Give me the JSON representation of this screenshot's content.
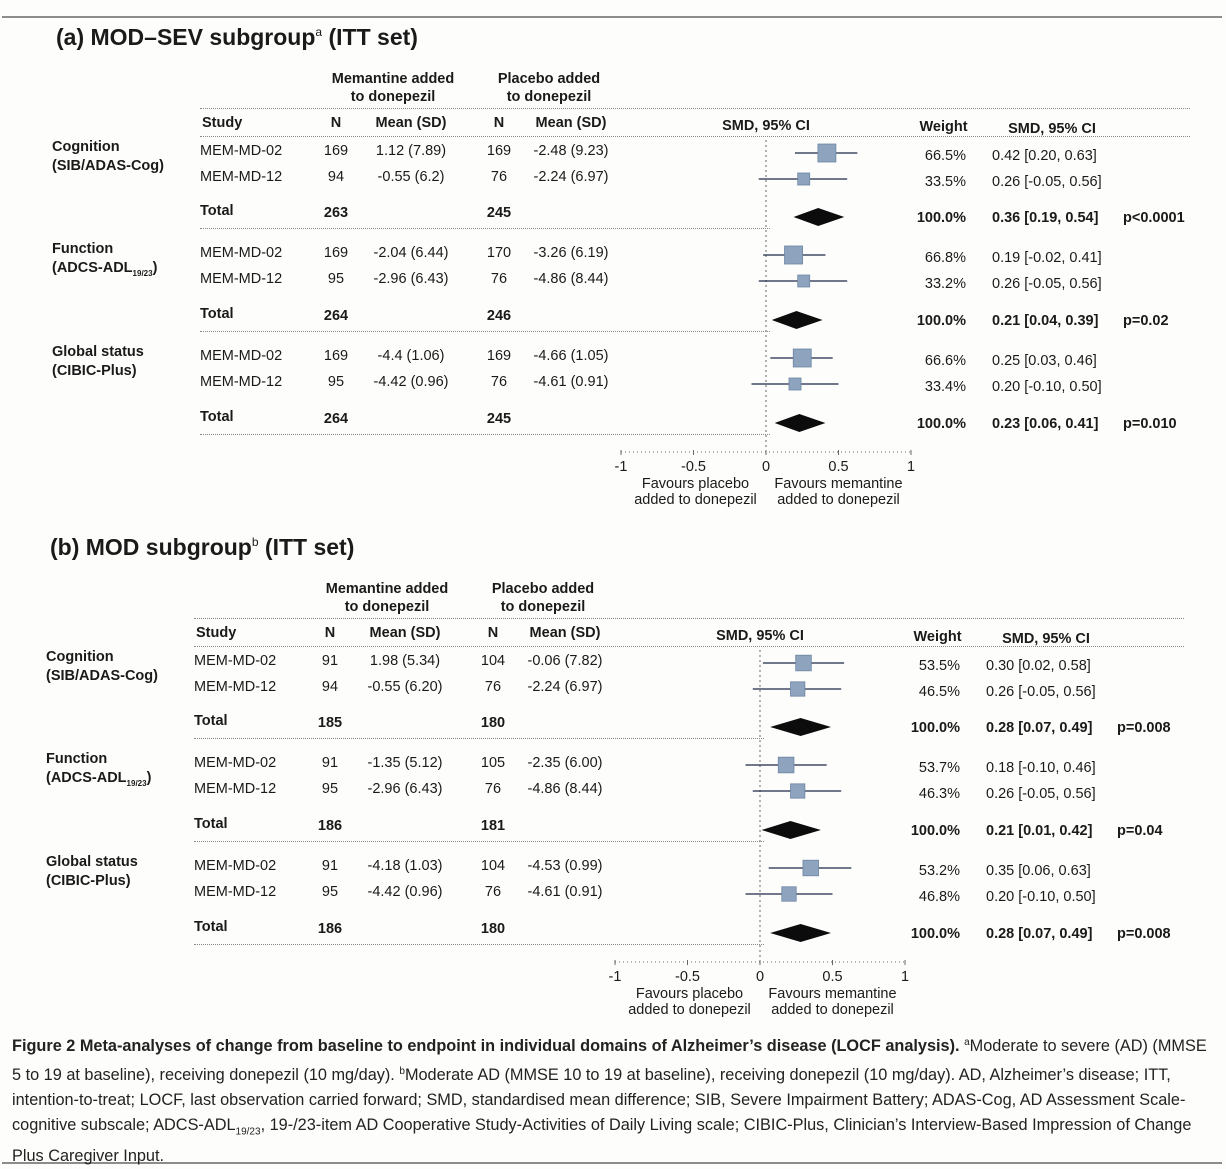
{
  "panels": [
    {
      "id": "a",
      "title_prefix": "(a) MOD–SEV subgroup",
      "title_sup": "a",
      "title_suffix": " (ITT set)",
      "hdr_memantine": [
        "Memantine added",
        "to donepezil"
      ],
      "hdr_placebo": [
        "Placebo added",
        "to donepezil"
      ],
      "col_study": "Study",
      "col_n": "N",
      "col_mean": "Mean (SD)",
      "col_plot": "SMD, 95% CI",
      "col_weight": "Weight",
      "col_smd": "SMD, 95% CI",
      "groups": [
        {
          "domain_line1": "Cognition",
          "domain_line2": "(SIB/ADAS-Cog)",
          "domain_sub": "",
          "rows": [
            {
              "study": "MEM-MD-02",
              "n1": "169",
              "mean1": "1.12 (7.89)",
              "n2": "169",
              "mean2": "-2.48 (9.23)",
              "weight": "66.5%",
              "smd": "0.42 [0.20, 0.63]",
              "est": 0.42,
              "lo": 0.2,
              "hi": 0.63,
              "w": 66.5
            },
            {
              "study": "MEM-MD-12",
              "n1": "94",
              "mean1": "-0.55 (6.2)",
              "n2": "76",
              "mean2": "-2.24 (6.97)",
              "weight": "33.5%",
              "smd": "0.26 [-0.05, 0.56]",
              "est": 0.26,
              "lo": -0.05,
              "hi": 0.56,
              "w": 33.5
            }
          ],
          "total": {
            "label": "Total",
            "n1": "263",
            "n2": "245",
            "weight": "100.0%",
            "smd": "0.36 [0.19, 0.54]",
            "p": "p<0.0001",
            "est": 0.36,
            "lo": 0.19,
            "hi": 0.54
          }
        },
        {
          "domain_line1": "Function",
          "domain_line2": "(ADCS-ADL",
          "domain_sub": "19/23",
          "rows": [
            {
              "study": "MEM-MD-02",
              "n1": "169",
              "mean1": "-2.04 (6.44)",
              "n2": "170",
              "mean2": "-3.26 (6.19)",
              "weight": "66.8%",
              "smd": "0.19 [-0.02, 0.41]",
              "est": 0.19,
              "lo": -0.02,
              "hi": 0.41,
              "w": 66.8
            },
            {
              "study": "MEM-MD-12",
              "n1": "95",
              "mean1": "-2.96 (6.43)",
              "n2": "76",
              "mean2": "-4.86 (8.44)",
              "weight": "33.2%",
              "smd": "0.26 [-0.05, 0.56]",
              "est": 0.26,
              "lo": -0.05,
              "hi": 0.56,
              "w": 33.2
            }
          ],
          "total": {
            "label": "Total",
            "n1": "264",
            "n2": "246",
            "weight": "100.0%",
            "smd": "0.21 [0.04, 0.39]",
            "p": "p=0.02",
            "est": 0.21,
            "lo": 0.04,
            "hi": 0.39
          }
        },
        {
          "domain_line1": "Global status",
          "domain_line2": "(CIBIC-Plus)",
          "domain_sub": "",
          "rows": [
            {
              "study": "MEM-MD-02",
              "n1": "169",
              "mean1": "-4.4 (1.06)",
              "n2": "169",
              "mean2": "-4.66 (1.05)",
              "weight": "66.6%",
              "smd": "0.25 [0.03, 0.46]",
              "est": 0.25,
              "lo": 0.03,
              "hi": 0.46,
              "w": 66.6
            },
            {
              "study": "MEM-MD-12",
              "n1": "95",
              "mean1": "-4.42 (0.96)",
              "n2": "76",
              "mean2": "-4.61 (0.91)",
              "weight": "33.4%",
              "smd": "0.20 [-0.10, 0.50]",
              "est": 0.2,
              "lo": -0.1,
              "hi": 0.5,
              "w": 33.4
            }
          ],
          "total": {
            "label": "Total",
            "n1": "264",
            "n2": "245",
            "weight": "100.0%",
            "smd": "0.23 [0.06, 0.41]",
            "p": "p=0.010",
            "est": 0.23,
            "lo": 0.06,
            "hi": 0.41
          }
        }
      ],
      "ticks": [
        "-1",
        "-0.5",
        "0",
        "0.5",
        "1"
      ],
      "tick_values": [
        -1,
        -0.5,
        0,
        0.5,
        1
      ],
      "fav_left": [
        "Favours placebo",
        "added to donepezil"
      ],
      "fav_right": [
        "Favours memantine",
        "added to donepezil"
      ]
    },
    {
      "id": "b",
      "title_prefix": "(b) MOD subgroup",
      "title_sup": "b",
      "title_suffix": " (ITT set)",
      "hdr_memantine": [
        "Memantine added",
        "to donepezil"
      ],
      "hdr_placebo": [
        "Placebo added",
        "to donepezil"
      ],
      "col_study": "Study",
      "col_n": "N",
      "col_mean": "Mean (SD)",
      "col_plot": "SMD, 95% CI",
      "col_weight": "Weight",
      "col_smd": "SMD, 95% CI",
      "groups": [
        {
          "domain_line1": "Cognition",
          "domain_line2": "(SIB/ADAS-Cog)",
          "domain_sub": "",
          "rows": [
            {
              "study": "MEM-MD-02",
              "n1": "91",
              "mean1": "1.98 (5.34)",
              "n2": "104",
              "mean2": "-0.06 (7.82)",
              "weight": "53.5%",
              "smd": "0.30 [0.02, 0.58]",
              "est": 0.3,
              "lo": 0.02,
              "hi": 0.58,
              "w": 53.5
            },
            {
              "study": "MEM-MD-12",
              "n1": "94",
              "mean1": "-0.55 (6.20)",
              "n2": "76",
              "mean2": "-2.24 (6.97)",
              "weight": "46.5%",
              "smd": "0.26 [-0.05, 0.56]",
              "est": 0.26,
              "lo": -0.05,
              "hi": 0.56,
              "w": 46.5
            }
          ],
          "total": {
            "label": "Total",
            "n1": "185",
            "n2": "180",
            "weight": "100.0%",
            "smd": "0.28 [0.07, 0.49]",
            "p": "p=0.008",
            "est": 0.28,
            "lo": 0.07,
            "hi": 0.49
          }
        },
        {
          "domain_line1": "Function",
          "domain_line2": "(ADCS-ADL",
          "domain_sub": "19/23",
          "rows": [
            {
              "study": "MEM-MD-02",
              "n1": "91",
              "mean1": "-1.35 (5.12)",
              "n2": "105",
              "mean2": "-2.35 (6.00)",
              "weight": "53.7%",
              "smd": "0.18 [-0.10, 0.46]",
              "est": 0.18,
              "lo": -0.1,
              "hi": 0.46,
              "w": 53.7
            },
            {
              "study": "MEM-MD-12",
              "n1": "95",
              "mean1": "-2.96 (6.43)",
              "n2": "76",
              "mean2": "-4.86 (8.44)",
              "weight": "46.3%",
              "smd": "0.26 [-0.05, 0.56]",
              "est": 0.26,
              "lo": -0.05,
              "hi": 0.56,
              "w": 46.3
            }
          ],
          "total": {
            "label": "Total",
            "n1": "186",
            "n2": "181",
            "weight": "100.0%",
            "smd": "0.21 [0.01, 0.42]",
            "p": "p=0.04",
            "est": 0.21,
            "lo": 0.01,
            "hi": 0.42
          }
        },
        {
          "domain_line1": "Global status",
          "domain_line2": "(CIBIC-Plus)",
          "domain_sub": "",
          "rows": [
            {
              "study": "MEM-MD-02",
              "n1": "91",
              "mean1": "-4.18 (1.03)",
              "n2": "104",
              "mean2": "-4.53 (0.99)",
              "weight": "53.2%",
              "smd": "0.35 [0.06, 0.63]",
              "est": 0.35,
              "lo": 0.06,
              "hi": 0.63,
              "w": 53.2
            },
            {
              "study": "MEM-MD-12",
              "n1": "95",
              "mean1": "-4.42 (0.96)",
              "n2": "76",
              "mean2": "-4.61 (0.91)",
              "weight": "46.8%",
              "smd": "0.20 [-0.10, 0.50]",
              "est": 0.2,
              "lo": -0.1,
              "hi": 0.5,
              "w": 46.8
            }
          ],
          "total": {
            "label": "Total",
            "n1": "186",
            "n2": "180",
            "weight": "100.0%",
            "smd": "0.28 [0.07, 0.49]",
            "p": "p=0.008",
            "est": 0.28,
            "lo": 0.07,
            "hi": 0.49
          }
        }
      ],
      "ticks": [
        "-1",
        "-0.5",
        "0",
        "0.5",
        "1"
      ],
      "tick_values": [
        -1,
        -0.5,
        0,
        0.5,
        1
      ],
      "fav_left": [
        "Favours placebo",
        "added to donepezil"
      ],
      "fav_right": [
        "Favours memantine",
        "added to donepezil"
      ]
    }
  ],
  "caption": {
    "lead": "Figure 2 Meta-analyses of change from baseline to endpoint in individual domains of Alzheimer’s disease (LOCF analysis).",
    "sup_a": "a",
    "part_a": "Moderate to severe (AD) (MMSE 5 to 19 at baseline), receiving donepezil (10 mg/day).",
    "sup_b": "b",
    "part_b": "Moderate AD (MMSE 10 to 19 at baseline), receiving donepezil (10 mg/day). AD, Alzheimer’s disease; ITT, intention-to-treat; LOCF, last observation carried forward; SMD, standardised mean difference; SIB, Severe Impairment Battery; ADAS-Cog, AD Assessment Scale-cognitive subscale; ADCS-ADL",
    "adl_sub": "19/23",
    "part_c": ", 19-/23-item AD Cooperative Study-Activities of Daily Living scale; CIBIC-Plus, Clinician’s Interview-Based Impression of Change Plus Caregiver Input."
  },
  "colors": {
    "ci_line": "#1e2a4a",
    "square": "#8ea3bd",
    "square_edge": "#6d86a4",
    "diamond": "#0c0c0c",
    "axis": "#666666"
  }
}
